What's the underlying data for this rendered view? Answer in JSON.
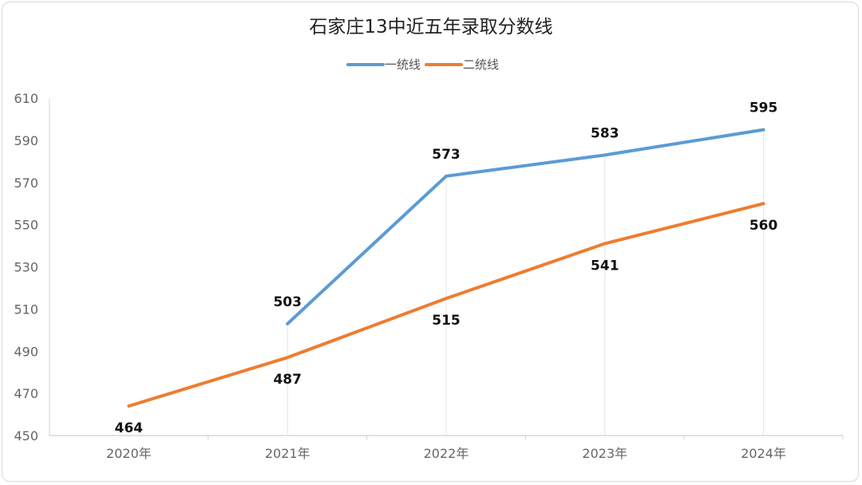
{
  "chart_data": {
    "type": "line",
    "title": "石家庄13中近五年录取分数线",
    "categories": [
      "2020年",
      "2021年",
      "2022年",
      "2023年",
      "2024年"
    ],
    "series": [
      {
        "name": "一统线",
        "color": "#5b9bd5",
        "values": [
          null,
          503,
          573,
          583,
          595
        ]
      },
      {
        "name": "二统线",
        "color": "#ed7d31",
        "values": [
          464,
          487,
          515,
          541,
          560
        ]
      }
    ],
    "ylim": [
      450,
      610
    ],
    "yticks": [
      "450",
      "470",
      "490",
      "510",
      "530",
      "550",
      "570",
      "590",
      "610"
    ],
    "legend_position": "top-center",
    "grid": false
  }
}
